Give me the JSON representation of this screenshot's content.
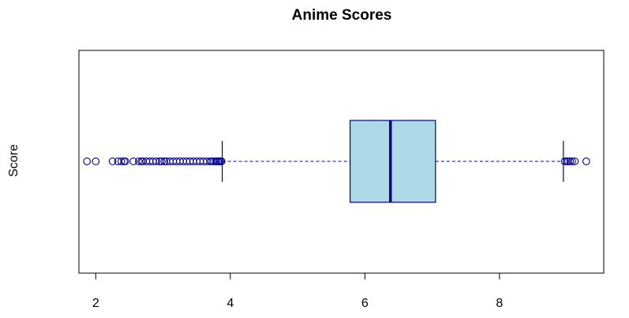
{
  "chart_data": {
    "type": "boxplot",
    "orientation": "horizontal",
    "title": "Anime Scores",
    "xlabel": "",
    "ylabel": "Score",
    "xlim": [
      1.75,
      9.55
    ],
    "x_ticks": [
      2,
      4,
      6,
      8
    ],
    "x_tick_labels": [
      "2",
      "4",
      "6",
      "8"
    ],
    "box": {
      "whisker_low": 3.88,
      "q1": 5.78,
      "median": 6.38,
      "q3": 7.05,
      "whisker_high": 8.95
    },
    "outliers_low": [
      1.87,
      2.0,
      2.25,
      2.33,
      2.38,
      2.42,
      2.44,
      2.56,
      2.64,
      2.68,
      2.7,
      2.75,
      2.8,
      2.85,
      2.9,
      2.95,
      2.98,
      3.02,
      3.05,
      3.1,
      3.15,
      3.2,
      3.25,
      3.3,
      3.35,
      3.4,
      3.45,
      3.5,
      3.55,
      3.6,
      3.65,
      3.7,
      3.72,
      3.75,
      3.78,
      3.8,
      3.82,
      3.84,
      3.86,
      3.87
    ],
    "outliers_high": [
      8.97,
      9.0,
      9.02,
      9.05,
      9.08,
      9.12,
      9.29
    ],
    "colors": {
      "box_fill": "#add8e6",
      "box_border": "#00008b",
      "median": "#00008b",
      "whisker": "#3333cc",
      "outlier": "#00008b",
      "frame": "#000000"
    }
  }
}
